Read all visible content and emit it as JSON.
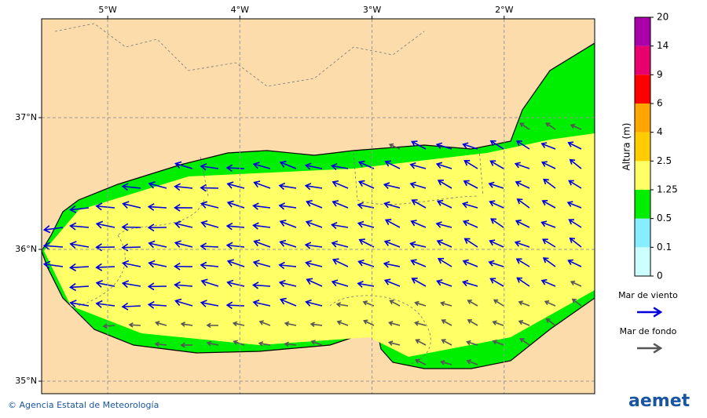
{
  "map": {
    "xlim": [
      -5.5,
      -1.315
    ],
    "ylim": [
      34.905,
      37.75
    ],
    "xticks": [
      {
        "value": -5,
        "label": "5°W"
      },
      {
        "value": -4,
        "label": "4°W"
      },
      {
        "value": -3,
        "label": "3°W"
      },
      {
        "value": -2,
        "label": "2°W"
      }
    ],
    "yticks": [
      {
        "value": 35,
        "label": "35°N"
      },
      {
        "value": 36,
        "label": "36°N"
      },
      {
        "value": 37,
        "label": "37°N"
      }
    ]
  },
  "colorbar": {
    "title": "Altura (m)",
    "ticks": [
      0,
      0.1,
      0.5,
      1.25,
      2.5,
      4,
      6,
      9,
      14,
      20
    ],
    "colors": [
      "#ccffff",
      "#88eeff",
      "#00ee00",
      "#ffff66",
      "#ffcc00",
      "#ffa500",
      "#ff0000",
      "#e8006e",
      "#aa00aa"
    ]
  },
  "legend": {
    "items": [
      {
        "label": "Mar de viento",
        "color": "#0000dd"
      },
      {
        "label": "Mar de fondo",
        "color": "#555555"
      }
    ]
  },
  "footer": {
    "credit": "© Agencia Estatal de Meteorología",
    "logo": "aemet"
  }
}
